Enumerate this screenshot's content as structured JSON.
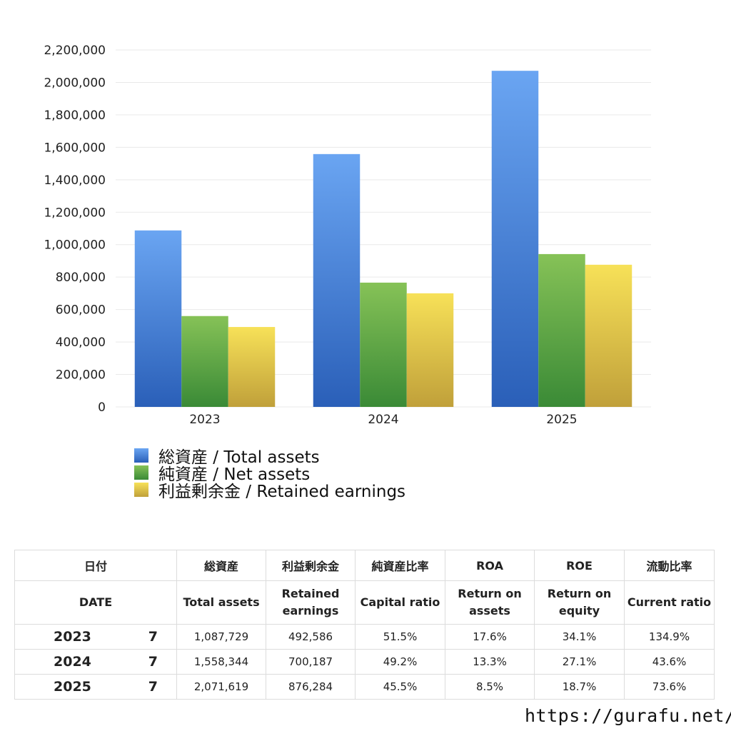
{
  "chart_data": {
    "type": "bar",
    "categories": [
      "2023",
      "2024",
      "2025"
    ],
    "series": [
      {
        "name": "総資産 / Total assets",
        "values": [
          1087729,
          1558344,
          2071619
        ],
        "color_top": "#6aa5f2",
        "color_bottom": "#2a5fb8"
      },
      {
        "name": "純資産 / Net assets",
        "values": [
          560000,
          766000,
          942000
        ],
        "color_top": "#86c257",
        "color_bottom": "#3a8a36"
      },
      {
        "name": "利益剰余金 / Retained earnings",
        "values": [
          492586,
          700187,
          876284
        ],
        "color_top": "#f7e158",
        "color_bottom": "#c0a03a"
      }
    ],
    "ylim": [
      0,
      2200000
    ],
    "yticks": [
      "0",
      "200,000",
      "400,000",
      "600,000",
      "800,000",
      "1,000,000",
      "1,200,000",
      "1,400,000",
      "1,600,000",
      "1,800,000",
      "2,000,000",
      "2,200,000"
    ],
    "grid": true,
    "legend": "bottom-left"
  },
  "table": {
    "header1": {
      "date": "日付",
      "total_assets": "総資産",
      "retained": "利益剰余金",
      "capital_ratio": "純資産比率",
      "roa": "ROA",
      "roe": "ROE",
      "current_ratio": "流動比率"
    },
    "header2": {
      "date": "DATE",
      "total_assets": "Total assets",
      "retained_l1": "Retained",
      "retained_l2": "earnings",
      "capital_ratio": "Capital ratio",
      "roa_l1": "Return on",
      "roa_l2": "assets",
      "roe_l1": "Return on",
      "roe_l2": "equity",
      "current_ratio": "Current ratio"
    },
    "rows": [
      {
        "year": "2023",
        "month": "7",
        "total_assets": "1,087,729",
        "retained": "492,586",
        "capital_ratio": "51.5%",
        "roa": "17.6%",
        "roe": "34.1%",
        "current_ratio": "134.9%"
      },
      {
        "year": "2024",
        "month": "7",
        "total_assets": "1,558,344",
        "retained": "700,187",
        "capital_ratio": "49.2%",
        "roa": "13.3%",
        "roe": "27.1%",
        "current_ratio": "43.6%"
      },
      {
        "year": "2025",
        "month": "7",
        "total_assets": "2,071,619",
        "retained": "876,284",
        "capital_ratio": "45.5%",
        "roa": "8.5%",
        "roe": "18.7%",
        "current_ratio": "73.6%"
      }
    ]
  },
  "footer": {
    "url": "https://gurafu.net/"
  }
}
